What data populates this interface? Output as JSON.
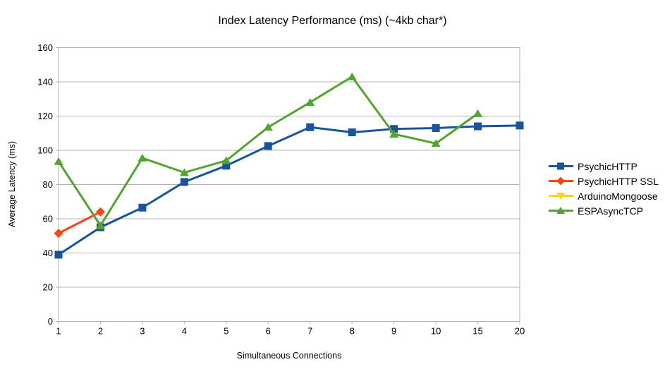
{
  "chart_data": {
    "type": "line",
    "title": "Index Latency Performance (ms) (~4kb char*)",
    "xlabel": "Simultaneous Connections",
    "ylabel": "Average Latency (ms)",
    "categories": [
      "1",
      "2",
      "3",
      "4",
      "5",
      "6",
      "7",
      "8",
      "9",
      "10",
      "15",
      "20"
    ],
    "ylim": [
      0,
      160
    ],
    "ytick_step": 20,
    "grid": "horizontal-only",
    "grid_color": "#b3b3b3",
    "axis_color": "#b3b3b3",
    "text_color": "#000000",
    "legend_position": "right",
    "series": [
      {
        "name": "PsychicHTTP",
        "color": "#17549B",
        "marker": "square",
        "values": [
          39,
          55,
          66.5,
          81.5,
          91,
          102.5,
          113.5,
          110.5,
          112.5,
          113,
          114,
          114.5
        ]
      },
      {
        "name": "PsychicHTTP SSL",
        "color": "#FC4514",
        "marker": "diamond",
        "values": [
          51.5,
          64,
          null,
          null,
          null,
          null,
          null,
          null,
          null,
          null,
          null,
          null
        ]
      },
      {
        "name": "ArduinoMongoose",
        "color": "#FFD320",
        "marker": "triangle-down",
        "values": [
          null,
          null,
          null,
          null,
          null,
          null,
          null,
          null,
          null,
          null,
          null,
          null
        ]
      },
      {
        "name": "ESPAsyncTCP",
        "color": "#4FA52E",
        "marker": "triangle-up",
        "values": [
          93.5,
          56,
          95.5,
          87,
          94,
          113.5,
          128,
          143,
          109.5,
          104,
          121.5,
          null
        ]
      }
    ]
  }
}
